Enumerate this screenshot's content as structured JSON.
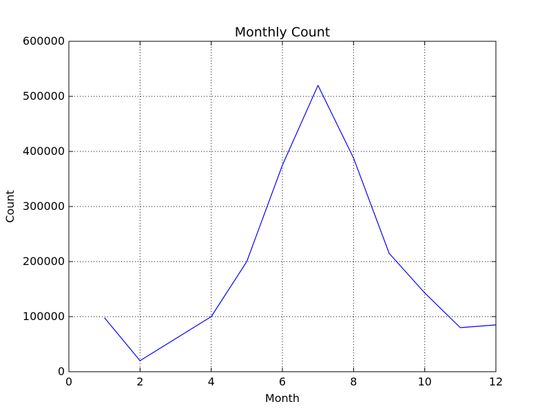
{
  "chart_data": {
    "type": "line",
    "title": "Monthly Count",
    "xlabel": "Month",
    "ylabel": "Count",
    "xlim": [
      0,
      12
    ],
    "ylim": [
      0,
      600000
    ],
    "x_ticks": [
      0,
      2,
      4,
      6,
      8,
      10,
      12
    ],
    "y_ticks": [
      0,
      100000,
      200000,
      300000,
      400000,
      500000,
      600000
    ],
    "grid": true,
    "series": [
      {
        "color": "#0000ff",
        "x": [
          1,
          2,
          3,
          4,
          5,
          6,
          7,
          8,
          9,
          10,
          11,
          12
        ],
        "y": [
          98000,
          20000,
          60000,
          100000,
          200000,
          375000,
          520000,
          388000,
          215000,
          143000,
          80000,
          85000
        ]
      }
    ]
  }
}
